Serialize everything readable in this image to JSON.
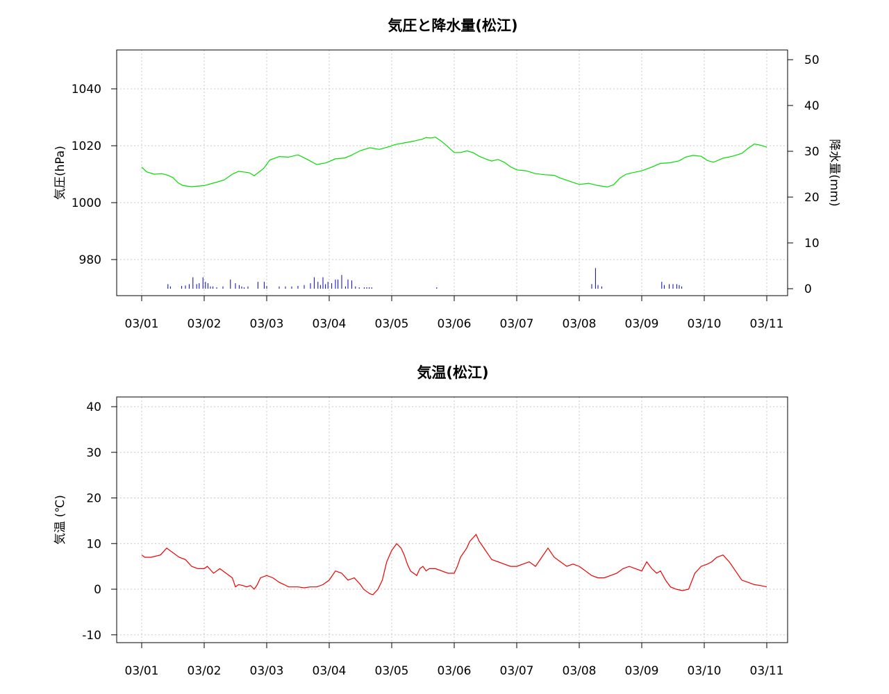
{
  "chart_data": [
    {
      "type": "line",
      "title": "気圧と降水量(松江)",
      "xlabel": "",
      "ylabel": "気圧(hPa)",
      "y2label": "降水量(mm)",
      "x_tick_labels": [
        "03/01",
        "03/02",
        "03/03",
        "03/04",
        "03/05",
        "03/06",
        "03/07",
        "03/08",
        "03/09",
        "03/10",
        "03/11"
      ],
      "ylim": [
        968,
        1053
      ],
      "y_ticks": [
        980,
        1000,
        1020,
        1040
      ],
      "y2lim": [
        -2,
        52
      ],
      "y2_ticks": [
        0,
        10,
        20,
        30,
        40,
        50
      ],
      "grid": true,
      "series": [
        {
          "kind": "line",
          "axis": "left",
          "color": "#00dd00",
          "x": [
            0,
            0.08,
            0.2,
            0.32,
            0.42,
            0.5,
            0.58,
            0.66,
            0.8,
            1.0,
            1.2,
            1.32,
            1.45,
            1.55,
            1.62,
            1.72,
            1.8,
            1.95,
            2.05,
            2.2,
            2.35,
            2.5,
            2.65,
            2.8,
            2.95,
            3.1,
            3.25,
            3.35,
            3.5,
            3.65,
            3.8,
            3.95,
            4.05,
            4.2,
            4.35,
            4.5,
            4.55,
            4.62,
            4.7,
            4.8,
            4.9,
            5.0,
            5.1,
            5.2,
            5.3,
            5.4,
            5.5,
            5.6,
            5.7,
            5.8,
            5.9,
            6.0,
            6.15,
            6.3,
            6.45,
            6.6,
            6.7,
            6.85,
            7.0,
            7.15,
            7.3,
            7.45,
            7.55,
            7.65,
            7.75,
            7.85,
            8.0,
            8.15,
            8.3,
            8.45,
            8.6,
            8.7,
            8.82,
            8.95,
            9.05,
            9.15,
            9.3,
            9.45,
            9.6,
            9.7,
            9.8,
            9.9,
            10.0
          ],
          "y": [
            1012.5,
            1010.8,
            1010.0,
            1010.2,
            1009.6,
            1008.8,
            1007.0,
            1006.0,
            1005.6,
            1006.0,
            1007.2,
            1008.0,
            1010.0,
            1011.0,
            1010.8,
            1010.5,
            1009.5,
            1012.0,
            1015.0,
            1016.2,
            1016.0,
            1016.8,
            1015.2,
            1013.4,
            1014.0,
            1015.4,
            1015.7,
            1016.6,
            1018.3,
            1019.3,
            1018.7,
            1019.6,
            1020.4,
            1021.0,
            1021.6,
            1022.4,
            1022.9,
            1022.7,
            1023.0,
            1021.5,
            1019.6,
            1017.6,
            1017.6,
            1018.2,
            1017.6,
            1016.3,
            1015.4,
            1014.6,
            1015.2,
            1014.2,
            1012.6,
            1011.5,
            1011.2,
            1010.2,
            1009.8,
            1009.6,
            1008.6,
            1007.5,
            1006.4,
            1006.8,
            1006.0,
            1005.5,
            1006.3,
            1008.6,
            1010.0,
            1010.5,
            1011.2,
            1012.4,
            1013.8,
            1014.0,
            1014.7,
            1016.0,
            1016.6,
            1016.3,
            1014.8,
            1014.2,
            1015.6,
            1016.3,
            1017.3,
            1019.1,
            1020.6,
            1020.2,
            1019.5
          ]
        },
        {
          "kind": "bar",
          "axis": "right",
          "color": "#0000cc",
          "x": [
            0.42,
            0.46,
            0.64,
            0.7,
            0.76,
            0.82,
            0.88,
            0.92,
            0.98,
            1.02,
            1.06,
            1.1,
            1.14,
            1.2,
            1.3,
            1.42,
            1.5,
            1.56,
            1.6,
            1.64,
            1.7,
            1.86,
            1.96,
            2.0,
            2.2,
            2.3,
            2.4,
            2.5,
            2.6,
            2.7,
            2.76,
            2.82,
            2.86,
            2.9,
            2.94,
            2.98,
            3.04,
            3.1,
            3.14,
            3.2,
            3.26,
            3.3,
            3.36,
            3.42,
            3.48,
            3.56,
            3.6,
            3.64,
            3.68,
            4.72,
            7.2,
            7.26,
            7.3,
            7.36,
            8.32,
            8.36,
            8.44,
            8.5,
            8.56,
            8.6,
            8.64
          ],
          "values": [
            1.0,
            0.5,
            0.6,
            0.7,
            1.0,
            2.5,
            1.0,
            1.2,
            2.5,
            1.5,
            1.2,
            0.5,
            0.5,
            0.3,
            0.5,
            2.0,
            1.2,
            0.8,
            0.5,
            0.3,
            0.5,
            1.5,
            1.5,
            0.6,
            0.5,
            0.5,
            0.5,
            0.6,
            0.8,
            1.2,
            2.5,
            1.5,
            0.8,
            2.5,
            1.0,
            1.5,
            1.2,
            2.0,
            2.0,
            3.0,
            0.5,
            2.0,
            1.8,
            0.5,
            0.3,
            0.3,
            0.3,
            0.3,
            0.3,
            0.3,
            1.0,
            4.5,
            0.8,
            0.5,
            1.5,
            0.8,
            1.0,
            1.0,
            1.0,
            0.8,
            0.5
          ]
        }
      ]
    },
    {
      "type": "line",
      "title": "気温(松江)",
      "xlabel": "",
      "ylabel": "気温 (℃)",
      "x_tick_labels": [
        "03/01",
        "03/02",
        "03/03",
        "03/04",
        "03/05",
        "03/06",
        "03/07",
        "03/08",
        "03/09",
        "03/10",
        "03/11"
      ],
      "ylim": [
        -12,
        42
      ],
      "y_ticks": [
        -10,
        0,
        10,
        20,
        30,
        40
      ],
      "grid": true,
      "series": [
        {
          "kind": "line",
          "axis": "left",
          "color": "#ee0000",
          "x": [
            0,
            0.05,
            0.15,
            0.3,
            0.4,
            0.5,
            0.55,
            0.6,
            0.7,
            0.8,
            0.9,
            1.0,
            1.05,
            1.15,
            1.25,
            1.35,
            1.45,
            1.5,
            1.55,
            1.62,
            1.68,
            1.74,
            1.8,
            1.85,
            1.9,
            2.0,
            2.1,
            2.2,
            2.28,
            2.35,
            2.42,
            2.5,
            2.6,
            2.7,
            2.8,
            2.9,
            3.0,
            3.1,
            3.2,
            3.3,
            3.4,
            3.5,
            3.55,
            3.6,
            3.65,
            3.7,
            3.78,
            3.85,
            3.92,
            4.0,
            4.08,
            4.15,
            4.2,
            4.25,
            4.3,
            4.35,
            4.4,
            4.45,
            4.5,
            4.55,
            4.6,
            4.7,
            4.8,
            4.9,
            5.0,
            5.05,
            5.1,
            5.15,
            5.2,
            5.25,
            5.35,
            5.4,
            5.45,
            5.5,
            5.55,
            5.6,
            5.7,
            5.8,
            5.9,
            6.0,
            6.1,
            6.2,
            6.3,
            6.4,
            6.5,
            6.6,
            6.7,
            6.8,
            6.9,
            7.0,
            7.05,
            7.1,
            7.15,
            7.2,
            7.3,
            7.4,
            7.5,
            7.6,
            7.7,
            7.8,
            7.9,
            8.0,
            8.08,
            8.16,
            8.24,
            8.3,
            8.38,
            8.46,
            8.55,
            8.65,
            8.75,
            8.85,
            8.95,
            9.05,
            9.12,
            9.2,
            9.3,
            9.4,
            9.5,
            9.6,
            9.7,
            9.8,
            9.9,
            10.0
          ],
          "y": [
            7.5,
            7.0,
            7.0,
            7.5,
            9.0,
            8.0,
            7.5,
            7.0,
            6.5,
            5.0,
            4.5,
            4.5,
            5.0,
            3.5,
            4.5,
            3.5,
            2.5,
            0.5,
            1.0,
            0.8,
            0.5,
            0.8,
            0.0,
            1.0,
            2.5,
            3.0,
            2.5,
            1.5,
            1.0,
            0.5,
            0.5,
            0.5,
            0.3,
            0.5,
            0.5,
            1.0,
            2.0,
            4.0,
            3.5,
            2.0,
            2.5,
            1.0,
            0.0,
            -0.5,
            -1.0,
            -1.2,
            0.0,
            2.0,
            6.0,
            8.5,
            10.0,
            9.0,
            7.5,
            5.5,
            4.0,
            3.5,
            3.0,
            4.5,
            5.0,
            4.0,
            4.5,
            4.5,
            4.0,
            3.5,
            3.5,
            5.0,
            7.0,
            8.0,
            9.0,
            10.5,
            12.0,
            10.5,
            9.5,
            8.5,
            7.5,
            6.5,
            6.0,
            5.5,
            5.0,
            5.0,
            5.5,
            6.0,
            5.0,
            7.0,
            9.0,
            7.0,
            6.0,
            5.0,
            5.5,
            5.0,
            4.5,
            4.0,
            3.5,
            3.0,
            2.5,
            2.5,
            3.0,
            3.5,
            4.5,
            5.0,
            4.5,
            4.0,
            6.0,
            4.5,
            3.5,
            4.0,
            2.0,
            0.5,
            0.0,
            -0.3,
            0.0,
            3.5,
            5.0,
            5.5,
            6.0,
            7.0,
            7.5,
            6.0,
            4.0,
            2.0,
            1.5,
            1.0,
            0.8,
            0.5
          ]
        }
      ]
    }
  ]
}
